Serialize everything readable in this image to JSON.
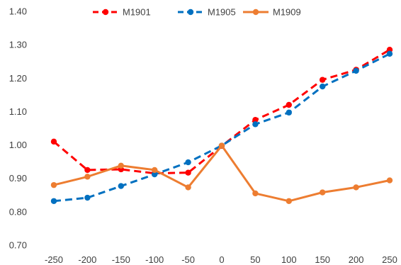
{
  "chart_data": {
    "type": "line",
    "x": [
      -250,
      -200,
      -150,
      -100,
      -50,
      0,
      50,
      100,
      150,
      200,
      250
    ],
    "ylim": [
      0.7,
      1.4
    ],
    "yticks": [
      "0.70",
      "0.80",
      "0.90",
      "1.00",
      "1.10",
      "1.20",
      "1.30",
      "1.40"
    ],
    "xticks": [
      "-250",
      "-200",
      "-150",
      "-100",
      "-50",
      "0",
      "50",
      "100",
      "150",
      "200",
      "250"
    ],
    "grid": false,
    "legend_position": "top",
    "series": [
      {
        "name": "M1901",
        "color": "#ff0000",
        "line_style": "dashed",
        "values": [
          1.01,
          0.925,
          0.927,
          0.915,
          0.917,
          0.997,
          1.075,
          1.12,
          1.195,
          1.225,
          1.285
        ]
      },
      {
        "name": "M1905",
        "color": "#0070c0",
        "line_style": "dashed",
        "values": [
          0.832,
          0.842,
          0.877,
          0.912,
          0.948,
          0.998,
          1.062,
          1.097,
          1.175,
          1.222,
          1.273
        ]
      },
      {
        "name": "M1909",
        "color": "#ed7d31",
        "line_style": "solid",
        "values": [
          0.88,
          0.905,
          0.938,
          0.925,
          0.873,
          0.998,
          0.855,
          0.832,
          0.858,
          0.873,
          0.894
        ]
      }
    ]
  }
}
